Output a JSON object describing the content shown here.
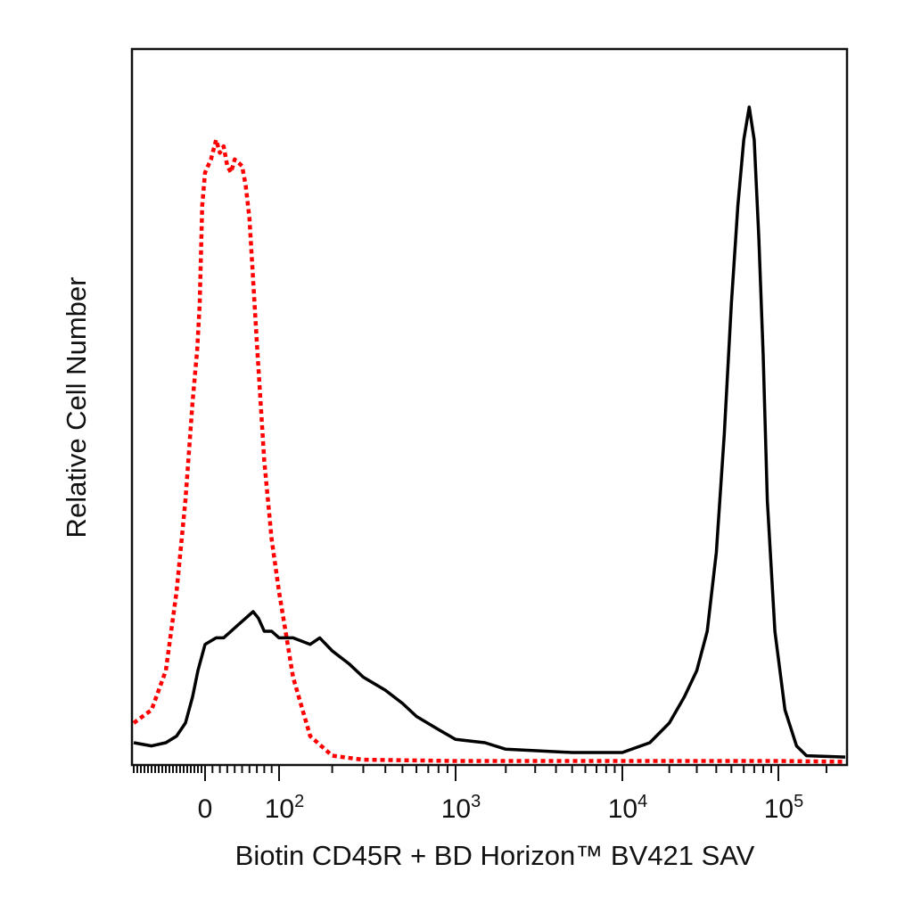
{
  "chart_data": {
    "type": "line",
    "title": "",
    "xlabel": "Biotin CD45R + BD Horizon™ BV421 SAV",
    "ylabel": "Relative Cell Number",
    "x_scale": "biexponential",
    "x_tick_labels": [
      {
        "value": 0,
        "base": "0",
        "exp": ""
      },
      {
        "value": 100,
        "base": "10",
        "exp": "2"
      },
      {
        "value": 1000,
        "base": "10",
        "exp": "3"
      },
      {
        "value": 10000,
        "base": "10",
        "exp": "4"
      },
      {
        "value": 100000,
        "base": "10",
        "exp": "5"
      }
    ],
    "xlim": [
      -200,
      262144
    ],
    "ylim": [
      0,
      100
    ],
    "grid": false,
    "legend": "none",
    "series": [
      {
        "style": "dotted",
        "color": "#ff0000",
        "points": [
          [
            -200,
            6
          ],
          [
            -150,
            8
          ],
          [
            -110,
            14
          ],
          [
            -80,
            26
          ],
          [
            -55,
            40
          ],
          [
            -35,
            55
          ],
          [
            -22,
            63
          ],
          [
            -15,
            70
          ],
          [
            -8,
            85
          ],
          [
            0,
            90
          ],
          [
            8,
            92
          ],
          [
            15,
            95
          ],
          [
            20,
            93
          ],
          [
            25,
            94
          ],
          [
            30,
            91
          ],
          [
            35,
            90
          ],
          [
            40,
            92
          ],
          [
            50,
            91
          ],
          [
            55,
            88
          ],
          [
            60,
            83
          ],
          [
            70,
            64
          ],
          [
            80,
            46
          ],
          [
            90,
            34
          ],
          [
            100,
            26
          ],
          [
            120,
            13
          ],
          [
            150,
            4
          ],
          [
            200,
            1
          ],
          [
            300,
            0.4
          ],
          [
            1000,
            0.2
          ],
          [
            10000,
            0.2
          ],
          [
            100000,
            0.2
          ],
          [
            262144,
            0.1
          ]
        ]
      },
      {
        "style": "solid",
        "color": "#000000",
        "points": [
          [
            -200,
            3
          ],
          [
            -150,
            2.5
          ],
          [
            -110,
            3
          ],
          [
            -80,
            4
          ],
          [
            -55,
            6
          ],
          [
            -35,
            10
          ],
          [
            -20,
            14
          ],
          [
            0,
            18
          ],
          [
            15,
            19
          ],
          [
            25,
            19
          ],
          [
            35,
            20
          ],
          [
            45,
            21
          ],
          [
            55,
            22
          ],
          [
            65,
            23
          ],
          [
            72,
            22
          ],
          [
            80,
            20
          ],
          [
            90,
            20
          ],
          [
            100,
            19
          ],
          [
            120,
            19
          ],
          [
            150,
            18
          ],
          [
            170,
            19
          ],
          [
            200,
            17
          ],
          [
            250,
            15
          ],
          [
            300,
            13
          ],
          [
            400,
            11
          ],
          [
            500,
            9
          ],
          [
            600,
            7
          ],
          [
            800,
            5
          ],
          [
            1000,
            3.5
          ],
          [
            1500,
            3
          ],
          [
            2000,
            2
          ],
          [
            5000,
            1.5
          ],
          [
            10000,
            1.5
          ],
          [
            15000,
            3
          ],
          [
            20000,
            6
          ],
          [
            25000,
            10
          ],
          [
            30000,
            14
          ],
          [
            35000,
            20
          ],
          [
            40000,
            32
          ],
          [
            45000,
            50
          ],
          [
            50000,
            70
          ],
          [
            55000,
            85
          ],
          [
            60000,
            95
          ],
          [
            65000,
            100
          ],
          [
            70000,
            95
          ],
          [
            75000,
            80
          ],
          [
            80000,
            62
          ],
          [
            85000,
            40
          ],
          [
            95000,
            20
          ],
          [
            110000,
            8
          ],
          [
            130000,
            2.5
          ],
          [
            150000,
            1
          ],
          [
            262144,
            0.8
          ]
        ]
      }
    ]
  }
}
